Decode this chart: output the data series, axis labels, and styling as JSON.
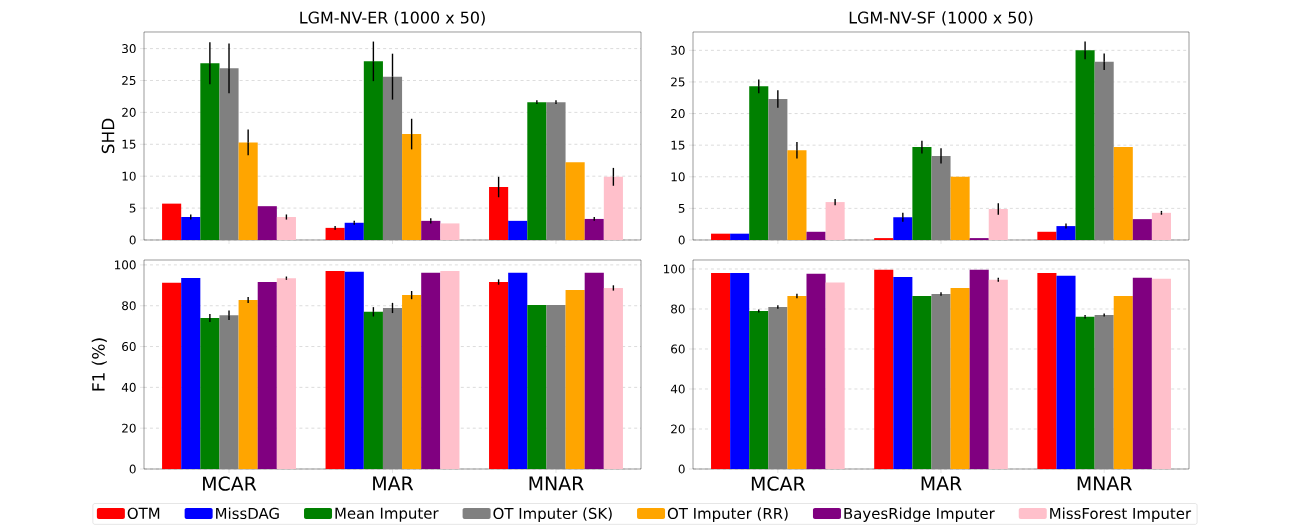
{
  "chart_data": [
    {
      "type": "bar",
      "title": "LGM-NV-ER (1000 x 50)",
      "ylabel": "SHD",
      "categories": [
        null,
        null,
        null
      ],
      "ylim": [
        0,
        32.6
      ],
      "yticks": [
        0,
        5,
        10,
        15,
        20,
        25,
        30
      ],
      "grid": "y",
      "tick_labels": "y",
      "series": [
        {
          "color": "#ff0000",
          "values": [
            5.7,
            1.9,
            8.3
          ],
          "errors": [
            null,
            0.3,
            1.6
          ]
        },
        {
          "color": "#0000ff",
          "values": [
            3.6,
            2.7,
            3.0
          ],
          "errors": [
            0.4,
            0.3,
            null
          ]
        },
        {
          "color": "#008000",
          "values": [
            27.7,
            28.0,
            21.6
          ],
          "errors": [
            3.3,
            3.1,
            0.3
          ]
        },
        {
          "color": "#808080",
          "values": [
            26.9,
            25.6,
            21.6
          ],
          "errors": [
            3.9,
            3.6,
            0.3
          ]
        },
        {
          "color": "#ffa500",
          "values": [
            15.3,
            16.6,
            12.2
          ],
          "errors": [
            2.0,
            2.4,
            null
          ]
        },
        {
          "color": "#800080",
          "values": [
            5.3,
            3.0,
            3.3
          ],
          "errors": [
            null,
            0.4,
            0.3
          ]
        },
        {
          "color": "#ffc0cb",
          "values": [
            3.6,
            2.6,
            9.9
          ],
          "errors": [
            0.4,
            null,
            1.4
          ]
        }
      ]
    },
    {
      "type": "bar",
      "title": "LGM-NV-SF (1000 x 50)",
      "categories": [
        null,
        null,
        null
      ],
      "ylim": [
        0,
        32.9
      ],
      "yticks": [
        0,
        5,
        10,
        15,
        20,
        25,
        30
      ],
      "grid": "y",
      "tick_labels": "y",
      "series": [
        {
          "color": "#ff0000",
          "values": [
            1.0,
            0.3,
            1.3
          ]
        },
        {
          "color": "#0000ff",
          "values": [
            1.0,
            3.6,
            2.2
          ],
          "errors": [
            null,
            0.7,
            0.4
          ]
        },
        {
          "color": "#008000",
          "values": [
            24.3,
            14.7,
            30.0
          ],
          "errors": [
            1.1,
            1.0,
            1.4
          ]
        },
        {
          "color": "#808080",
          "values": [
            22.3,
            13.3,
            28.2
          ],
          "errors": [
            1.4,
            1.2,
            1.3
          ]
        },
        {
          "color": "#ffa500",
          "values": [
            14.2,
            10.0,
            14.7
          ],
          "errors": [
            1.3,
            null,
            null
          ]
        },
        {
          "color": "#800080",
          "values": [
            1.3,
            0.3,
            3.3
          ]
        },
        {
          "color": "#ffc0cb",
          "values": [
            6.0,
            4.9,
            4.3
          ],
          "errors": [
            0.5,
            0.9,
            0.3
          ]
        }
      ]
    },
    {
      "type": "bar",
      "ylabel": "F1 (%)",
      "categories": [
        "MCAR",
        "MAR",
        "MNAR"
      ],
      "ylim": [
        0,
        102.4
      ],
      "yticks": [
        0,
        20,
        40,
        60,
        80,
        100
      ],
      "grid": "y",
      "legend": "bottom",
      "series": [
        {
          "name": "OTM",
          "color": "#ff0000",
          "values": [
            91.2,
            97.0,
            91.6
          ],
          "errors": [
            null,
            null,
            1.3
          ]
        },
        {
          "name": "MissDAG",
          "color": "#0000ff",
          "values": [
            93.6,
            96.6,
            96.1
          ]
        },
        {
          "name": "Mean Imputer",
          "color": "#008000",
          "values": [
            74.0,
            77.0,
            80.3
          ],
          "errors": [
            2.0,
            2.3,
            null
          ]
        },
        {
          "name": "OT Imputer (SK)",
          "color": "#808080",
          "values": [
            75.3,
            78.9,
            80.3
          ],
          "errors": [
            2.3,
            2.5,
            null
          ]
        },
        {
          "name": "OT Imputer (RR)",
          "color": "#ffa500",
          "values": [
            82.8,
            85.2,
            87.7
          ],
          "errors": [
            1.5,
            2.0,
            null
          ]
        },
        {
          "name": "BayesRidge Imputer",
          "color": "#800080",
          "values": [
            91.6,
            96.1,
            96.1
          ]
        },
        {
          "name": "MissForest Imputer",
          "color": "#ffc0cb",
          "values": [
            93.5,
            97.0,
            88.7
          ],
          "errors": [
            0.8,
            null,
            1.3
          ]
        }
      ]
    },
    {
      "type": "bar",
      "categories": [
        "MCAR",
        "MAR",
        "MNAR"
      ],
      "ylim": [
        0,
        104.5
      ],
      "yticks": [
        0,
        20,
        40,
        60,
        80,
        100
      ],
      "grid": "y",
      "series": [
        {
          "color": "#ff0000",
          "values": [
            98.0,
            99.6,
            98.0
          ]
        },
        {
          "color": "#0000ff",
          "values": [
            98.0,
            96.0,
            96.6
          ]
        },
        {
          "color": "#008000",
          "values": [
            79.0,
            86.5,
            76.1
          ],
          "errors": [
            0.8,
            null,
            0.9
          ]
        },
        {
          "color": "#808080",
          "values": [
            81.0,
            87.5,
            77.0
          ],
          "errors": [
            0.9,
            0.9,
            0.8
          ]
        },
        {
          "color": "#ffa500",
          "values": [
            86.5,
            90.5,
            86.5
          ],
          "errors": [
            1.1,
            null,
            null
          ]
        },
        {
          "color": "#800080",
          "values": [
            97.6,
            99.6,
            95.6
          ]
        },
        {
          "color": "#ffc0cb",
          "values": [
            93.2,
            94.6,
            95.1
          ],
          "errors": [
            null,
            1.0,
            null
          ]
        }
      ]
    }
  ]
}
